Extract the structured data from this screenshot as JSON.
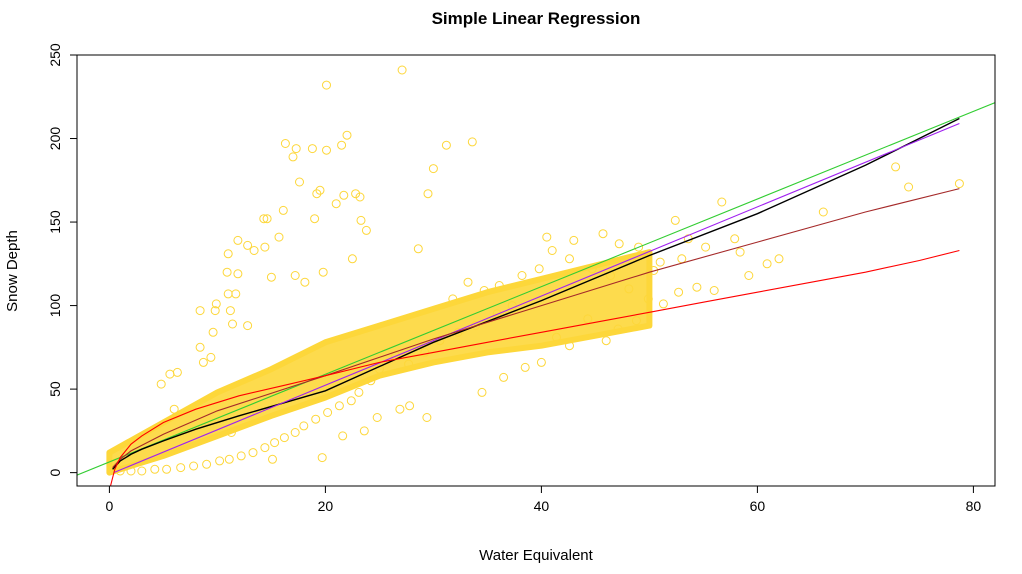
{
  "chart_data": {
    "type": "scatter",
    "title": "Simple Linear Regression",
    "xlabel": "Water Equivalent",
    "ylabel": "Snow Depth",
    "xlim": [
      -3,
      82
    ],
    "ylim": [
      -8,
      250
    ],
    "x_ticks": [
      0,
      20,
      40,
      60,
      80
    ],
    "y_ticks": [
      0,
      50,
      100,
      150,
      200,
      250
    ],
    "grid": false,
    "legend": "none",
    "point_color": "#FDD73A",
    "band": {
      "description_note": "",
      "x": [
        0,
        5,
        10,
        15,
        20,
        25,
        30,
        35,
        40,
        45,
        50
      ],
      "y_low": [
        0,
        10,
        22,
        34,
        45,
        58,
        66,
        72,
        76,
        82,
        88
      ],
      "y_high": [
        12,
        30,
        48,
        62,
        78,
        88,
        98,
        108,
        116,
        124,
        132
      ]
    },
    "points": [
      [
        27.1,
        241
      ],
      [
        20.1,
        232
      ],
      [
        22.0,
        202
      ],
      [
        21.5,
        196
      ],
      [
        16.3,
        197
      ],
      [
        17.3,
        194
      ],
      [
        17.0,
        189
      ],
      [
        18.8,
        194
      ],
      [
        20.1,
        193
      ],
      [
        33.6,
        198
      ],
      [
        31.2,
        196
      ],
      [
        30.0,
        182
      ],
      [
        22.8,
        167
      ],
      [
        23.2,
        165
      ],
      [
        21.7,
        166
      ],
      [
        19.2,
        167
      ],
      [
        19.5,
        169
      ],
      [
        17.6,
        174
      ],
      [
        14.3,
        152
      ],
      [
        14.6,
        152
      ],
      [
        16.1,
        157
      ],
      [
        21.0,
        161
      ],
      [
        23.3,
        151
      ],
      [
        23.8,
        145
      ],
      [
        19.0,
        152
      ],
      [
        29.5,
        167
      ],
      [
        15.7,
        141
      ],
      [
        11.9,
        139
      ],
      [
        12.8,
        136
      ],
      [
        11.0,
        131
      ],
      [
        13.4,
        133
      ],
      [
        14.4,
        135
      ],
      [
        10.9,
        120
      ],
      [
        11.9,
        119
      ],
      [
        15.0,
        117
      ],
      [
        17.2,
        118
      ],
      [
        18.1,
        114
      ],
      [
        19.8,
        120
      ],
      [
        22.5,
        128
      ],
      [
        28.6,
        134
      ],
      [
        11.0,
        107
      ],
      [
        11.7,
        107
      ],
      [
        9.9,
        101
      ],
      [
        8.4,
        97
      ],
      [
        9.8,
        97
      ],
      [
        11.2,
        97
      ],
      [
        11.4,
        89
      ],
      [
        12.8,
        88
      ],
      [
        9.6,
        84
      ],
      [
        8.4,
        75
      ],
      [
        5.6,
        59
      ],
      [
        6.3,
        60
      ],
      [
        4.8,
        53
      ],
      [
        8.7,
        66
      ],
      [
        9.4,
        69
      ],
      [
        6.0,
        38
      ],
      [
        11.3,
        24
      ],
      [
        15.1,
        8
      ],
      [
        19.7,
        9
      ],
      [
        21.6,
        22
      ],
      [
        23.6,
        25
      ],
      [
        24.8,
        33
      ],
      [
        26.9,
        38
      ],
      [
        27.8,
        40
      ],
      [
        29.4,
        33
      ],
      [
        34.5,
        48
      ],
      [
        36.5,
        57
      ],
      [
        38.5,
        63
      ],
      [
        40.0,
        66
      ],
      [
        41.4,
        81
      ],
      [
        42.6,
        76
      ],
      [
        44.3,
        92
      ],
      [
        46.0,
        79
      ],
      [
        47.1,
        86
      ],
      [
        48.8,
        91
      ],
      [
        49.9,
        104
      ],
      [
        51.3,
        101
      ],
      [
        52.7,
        108
      ],
      [
        54.4,
        111
      ],
      [
        55.2,
        135
      ],
      [
        56.0,
        109
      ],
      [
        53.0,
        128
      ],
      [
        50.4,
        121
      ],
      [
        48.1,
        110
      ],
      [
        46.4,
        118
      ],
      [
        44.7,
        122
      ],
      [
        42.6,
        128
      ],
      [
        41.0,
        133
      ],
      [
        39.8,
        122
      ],
      [
        38.2,
        118
      ],
      [
        36.1,
        112
      ],
      [
        34.7,
        109
      ],
      [
        33.2,
        114
      ],
      [
        31.8,
        104
      ],
      [
        40.5,
        141
      ],
      [
        43.0,
        139
      ],
      [
        45.7,
        143
      ],
      [
        47.2,
        137
      ],
      [
        49.0,
        135
      ],
      [
        51.0,
        126
      ],
      [
        53.6,
        140
      ],
      [
        56.7,
        162
      ],
      [
        52.4,
        151
      ],
      [
        57.9,
        140
      ],
      [
        62.0,
        128
      ],
      [
        66.1,
        156
      ],
      [
        72.8,
        183
      ],
      [
        74.0,
        171
      ],
      [
        78.7,
        173
      ],
      [
        60.9,
        125
      ],
      [
        59.2,
        118
      ],
      [
        58.4,
        132
      ],
      [
        35.9,
        95
      ],
      [
        37.3,
        100
      ],
      [
        33.9,
        88
      ],
      [
        32.3,
        84
      ],
      [
        30.6,
        79
      ],
      [
        29.2,
        72
      ],
      [
        27.7,
        65
      ],
      [
        26.5,
        70
      ],
      [
        25.0,
        62
      ],
      [
        24.2,
        55
      ],
      [
        23.1,
        48
      ],
      [
        22.4,
        43
      ],
      [
        21.3,
        40
      ],
      [
        20.2,
        36
      ],
      [
        19.1,
        32
      ],
      [
        18.0,
        28
      ],
      [
        17.2,
        24
      ],
      [
        16.2,
        21
      ],
      [
        15.3,
        18
      ],
      [
        14.4,
        15
      ],
      [
        13.3,
        12
      ],
      [
        12.2,
        10
      ],
      [
        11.1,
        8
      ],
      [
        10.2,
        7
      ],
      [
        9.0,
        5
      ],
      [
        7.8,
        4
      ],
      [
        6.6,
        3
      ],
      [
        5.3,
        2
      ],
      [
        4.2,
        2
      ],
      [
        3.0,
        1
      ],
      [
        2.0,
        1
      ],
      [
        1.0,
        1
      ],
      [
        0.3,
        2
      ],
      [
        0.6,
        3
      ]
    ],
    "series": [
      {
        "color": "#32CD32",
        "x": [
          -3,
          82
        ],
        "y": [
          -1.5,
          221.5
        ]
      },
      {
        "color": "#000000",
        "x": [
          0.3,
          1,
          2,
          3,
          5,
          8,
          12,
          20,
          30,
          40,
          50,
          60,
          70,
          78.7
        ],
        "y": [
          2,
          7,
          11,
          14,
          19,
          26,
          34,
          49,
          78,
          103,
          130,
          155,
          184,
          212
        ]
      },
      {
        "color": "#A020F0",
        "x": [
          0.4,
          78.7
        ],
        "y": [
          0,
          209
        ]
      },
      {
        "color": "#A52A2A",
        "x": [
          0.3,
          1,
          2,
          5,
          10,
          20,
          30,
          40,
          50,
          60,
          70,
          78.7
        ],
        "y": [
          3,
          8,
          13,
          23,
          37,
          58,
          80,
          100,
          120,
          138,
          156,
          170
        ]
      },
      {
        "color": "#FF0000",
        "x": [
          0.1,
          0.5,
          1,
          2,
          3,
          5,
          8,
          12,
          16,
          20,
          25,
          30,
          35,
          40,
          45,
          50,
          55,
          60,
          65,
          70,
          75,
          78.7
        ],
        "y": [
          -8,
          2,
          9,
          17,
          22,
          30,
          38,
          46,
          52,
          58,
          66,
          72,
          78,
          84,
          90,
          96,
          102,
          108,
          114,
          120,
          127,
          133
        ]
      }
    ]
  }
}
